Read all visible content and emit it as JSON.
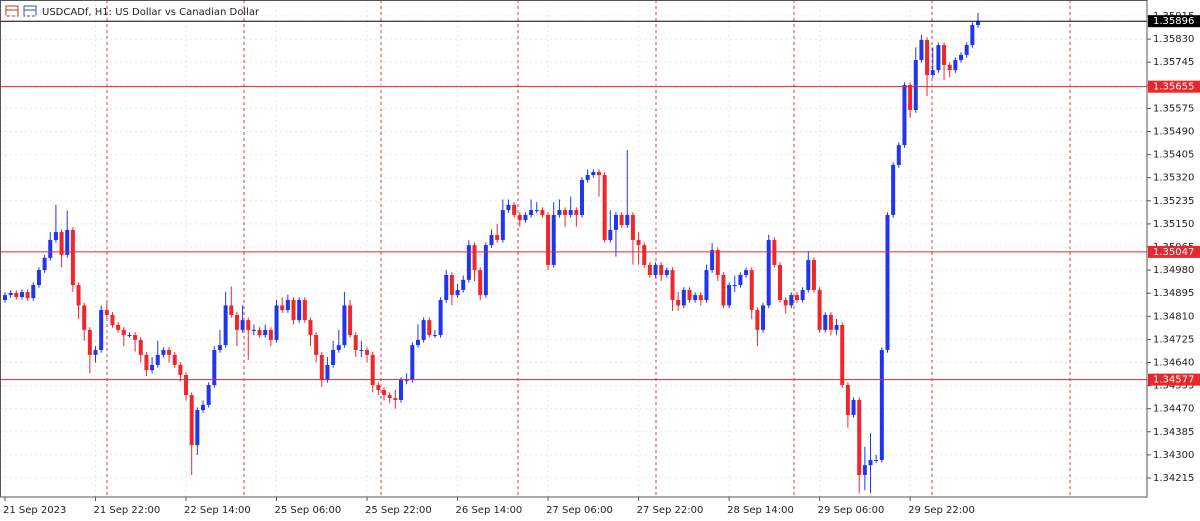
{
  "chart_data": {
    "type": "candlestick",
    "title": "USDCADf, H1:  US Dollar vs Canadian Dollar",
    "categories": [
      "21 Sep 2023",
      null,
      null,
      null,
      null,
      null,
      null,
      null,
      null,
      null,
      null,
      null,
      null,
      null,
      null,
      null,
      "21 Sep 22:00",
      null,
      null,
      null,
      null,
      null,
      null,
      null,
      null,
      null,
      null,
      null,
      null,
      null,
      null,
      null,
      "22 Sep 14:00",
      null,
      null,
      null,
      null,
      null,
      null,
      null,
      null,
      null,
      null,
      null,
      null,
      null,
      null,
      null,
      "25 Sep 06:00",
      null,
      null,
      null,
      null,
      null,
      null,
      null,
      null,
      null,
      null,
      null,
      null,
      null,
      null,
      null,
      "25 Sep 22:00",
      null,
      null,
      null,
      null,
      null,
      null,
      null,
      null,
      null,
      null,
      null,
      null,
      null,
      null,
      null,
      "26 Sep 14:00",
      null,
      null,
      null,
      null,
      null,
      null,
      null,
      null,
      null,
      null,
      null,
      null,
      null,
      null,
      null,
      "27 Sep 06:00",
      null,
      null,
      null,
      null,
      null,
      null,
      null,
      null,
      null,
      null,
      null,
      null,
      null,
      null,
      null,
      "27 Sep 22:00",
      null,
      null,
      null,
      null,
      null,
      null,
      null,
      null,
      null,
      null,
      null,
      null,
      null,
      null,
      null,
      "28 Sep 14:00",
      null,
      null,
      null,
      null,
      null,
      null,
      null,
      null,
      null,
      null,
      null,
      null,
      null,
      null,
      null,
      "29 Sep 06:00",
      null,
      null,
      null,
      null,
      null,
      null,
      null,
      null,
      null,
      null,
      null,
      null,
      null,
      null,
      null,
      "29 Sep 22:00",
      null,
      null,
      null,
      null,
      null,
      null,
      null,
      null,
      null,
      null,
      null,
      null
    ],
    "open": [
      1.3487,
      1.34888,
      1.34896,
      1.34881,
      1.34899,
      1.34877,
      1.34925,
      1.3498,
      1.35025,
      1.35091,
      1.3512,
      1.35036,
      1.35128,
      1.34925,
      1.3485,
      1.3476,
      1.34668,
      1.34686,
      1.34833,
      1.34815,
      1.34778,
      1.3476,
      1.34741,
      1.34741,
      1.34723,
      1.34668,
      1.34612,
      1.34631,
      1.34668,
      1.34686,
      1.34668,
      1.34631,
      1.34594,
      1.3452,
      1.34336,
      1.34465,
      1.34484,
      1.34557,
      1.34686,
      1.34704,
      1.3485,
      1.34815,
      1.3476,
      1.34796,
      1.3476,
      1.3476,
      1.34741,
      1.3476,
      1.34723,
      1.3485,
      1.34833,
      1.3487,
      1.34796,
      1.3487,
      1.34796,
      1.34741,
      1.34668,
      1.34576,
      1.34631,
      1.34686,
      1.34704,
      1.3485,
      1.34741,
      1.34686,
      1.34686,
      1.34668,
      1.34557,
      1.34539,
      1.3452,
      1.34509,
      1.34502,
      1.34576,
      1.34576,
      1.34704,
      1.34723,
      1.34796,
      1.34741,
      1.34741,
      1.3487,
      1.34962,
      1.34888,
      1.34907,
      1.34944,
      1.35072,
      1.3498,
      1.34888,
      1.35072,
      1.35109,
      1.35091,
      1.35201,
      1.3522,
      1.35183,
      1.35164,
      1.35183,
      1.35201,
      1.35201,
      1.35183,
      1.34999,
      1.35183,
      1.35201,
      1.35183,
      1.35201,
      1.35183,
      1.35312,
      1.3533,
      1.35341,
      1.3533,
      1.35091,
      1.35128,
      1.35183,
      1.35146,
      1.35183,
      1.35091,
      1.35072,
      1.34999,
      1.34962,
      1.34999,
      1.34962,
      1.3498,
      1.3487,
      1.3485,
      1.34907,
      1.3487,
      1.34888,
      1.3487,
      1.3498,
      1.35054,
      1.34962,
      1.3485,
      1.34925,
      1.34925,
      1.34962,
      1.3498,
      1.34833,
      1.3476,
      1.3485,
      1.35091,
      1.34999,
      1.3487,
      1.3485,
      1.34888,
      1.3487,
      1.34907,
      1.35017,
      1.34907,
      1.3476,
      1.34815,
      1.3476,
      1.34778,
      1.34557,
      1.34447,
      1.34502,
      1.34226,
      1.34262,
      1.34281,
      1.34281,
      1.34686,
      1.35183,
      1.35367,
      1.3544,
      1.35661,
      1.35569,
      1.35753,
      1.35827,
      1.35698,
      1.35716,
      1.35808,
      1.35735,
      1.35716,
      1.35753,
      1.35772,
      1.35808,
      1.35882
    ],
    "high": [
      1.34898,
      1.34906,
      1.34906,
      1.34909,
      1.34909,
      1.34935,
      1.3499,
      1.35035,
      1.3512,
      1.3522,
      1.3513,
      1.352,
      1.35138,
      1.34935,
      1.3486,
      1.3477,
      1.347,
      1.3485,
      1.3486,
      1.34825,
      1.34788,
      1.3477,
      1.34751,
      1.34751,
      1.34733,
      1.34678,
      1.3466,
      1.3472,
      1.34696,
      1.34696,
      1.34678,
      1.34641,
      1.34604,
      1.3453,
      1.34475,
      1.345,
      1.34567,
      1.347,
      1.3476,
      1.349,
      1.3492,
      1.34825,
      1.3485,
      1.34806,
      1.3478,
      1.3477,
      1.3478,
      1.3477,
      1.3487,
      1.3488,
      1.3489,
      1.3488,
      1.3488,
      1.3488,
      1.34806,
      1.34751,
      1.34678,
      1.3466,
      1.3472,
      1.3476,
      1.349,
      1.3487,
      1.34751,
      1.3472,
      1.34696,
      1.34678,
      1.34567,
      1.34549,
      1.3453,
      1.3454,
      1.34586,
      1.346,
      1.34714,
      1.3478,
      1.34806,
      1.34806,
      1.3476,
      1.3488,
      1.3498,
      1.34972,
      1.3493,
      1.3496,
      1.3509,
      1.35082,
      1.3499,
      1.35082,
      1.3513,
      1.3515,
      1.3524,
      1.3524,
      1.3523,
      1.35193,
      1.35193,
      1.3524,
      1.3523,
      1.35211,
      1.35193,
      1.3523,
      1.3524,
      1.35211,
      1.3525,
      1.35211,
      1.35322,
      1.3535,
      1.35351,
      1.35351,
      1.3534,
      1.352,
      1.35193,
      1.35193,
      1.35422,
      1.35193,
      1.3512,
      1.35082,
      1.35009,
      1.35009,
      1.35009,
      1.3499,
      1.3499,
      1.349,
      1.34917,
      1.34917,
      1.34898,
      1.34898,
      1.35,
      1.3508,
      1.35064,
      1.34972,
      1.34935,
      1.3496,
      1.34972,
      1.3499,
      1.3499,
      1.34843,
      1.3486,
      1.3511,
      1.35101,
      1.35009,
      1.3488,
      1.34898,
      1.34898,
      1.34917,
      1.3505,
      1.35027,
      1.34917,
      1.34825,
      1.34825,
      1.348,
      1.34788,
      1.34567,
      1.34512,
      1.34512,
      1.3433,
      1.3438,
      1.343,
      1.34696,
      1.35193,
      1.35377,
      1.3545,
      1.35671,
      1.35671,
      1.358,
      1.35845,
      1.35837,
      1.358,
      1.35818,
      1.35818,
      1.35745,
      1.35763,
      1.35782,
      1.35818,
      1.35892,
      1.35926
    ],
    "low": [
      1.3486,
      1.34878,
      1.34871,
      1.34871,
      1.34867,
      1.34867,
      1.34915,
      1.3497,
      1.35015,
      1.35081,
      1.3499,
      1.35026,
      1.349,
      1.348,
      1.3472,
      1.346,
      1.3464,
      1.34676,
      1.34805,
      1.34768,
      1.3475,
      1.347,
      1.34731,
      1.3468,
      1.3464,
      1.3459,
      1.346,
      1.34621,
      1.34658,
      1.3464,
      1.34621,
      1.3457,
      1.345,
      1.34226,
      1.343,
      1.34455,
      1.34474,
      1.34547,
      1.34676,
      1.34694,
      1.34805,
      1.347,
      1.3475,
      1.3465,
      1.3474,
      1.34731,
      1.34731,
      1.347,
      1.34713,
      1.34823,
      1.34823,
      1.3478,
      1.34786,
      1.34786,
      1.347,
      1.3464,
      1.3455,
      1.34566,
      1.34621,
      1.34676,
      1.34694,
      1.34731,
      1.3466,
      1.3466,
      1.3464,
      1.3453,
      1.3452,
      1.345,
      1.3449,
      1.3447,
      1.34492,
      1.3456,
      1.34566,
      1.34694,
      1.34713,
      1.34731,
      1.34731,
      1.34731,
      1.3486,
      1.3485,
      1.34878,
      1.34897,
      1.34934,
      1.3494,
      1.3487,
      1.34878,
      1.35062,
      1.35081,
      1.35081,
      1.35191,
      1.35173,
      1.3514,
      1.35154,
      1.35173,
      1.3519,
      1.35173,
      1.3498,
      1.34989,
      1.35173,
      1.3514,
      1.35173,
      1.3514,
      1.35173,
      1.35302,
      1.3532,
      1.3525,
      1.35081,
      1.35081,
      1.3503,
      1.35136,
      1.35136,
      1.35,
      1.35,
      1.34989,
      1.34952,
      1.34952,
      1.3494,
      1.34952,
      1.3483,
      1.3483,
      1.3484,
      1.3486,
      1.3486,
      1.3485,
      1.3486,
      1.3497,
      1.3494,
      1.3484,
      1.3484,
      1.349,
      1.34915,
      1.34952,
      1.348,
      1.347,
      1.3475,
      1.3484,
      1.34989,
      1.3486,
      1.3482,
      1.3484,
      1.3486,
      1.3486,
      1.34897,
      1.34897,
      1.3475,
      1.3475,
      1.3474,
      1.3474,
      1.34547,
      1.344,
      1.34437,
      1.3416,
      1.3417,
      1.3416,
      1.34271,
      1.34271,
      1.34676,
      1.35173,
      1.35357,
      1.3543,
      1.3554,
      1.35559,
      1.35743,
      1.3562,
      1.35688,
      1.35706,
      1.3568,
      1.3569,
      1.35706,
      1.35743,
      1.35762,
      1.35798,
      1.35872
    ],
    "close": [
      1.34888,
      1.34896,
      1.34881,
      1.34899,
      1.34877,
      1.34925,
      1.3498,
      1.35025,
      1.35091,
      1.3512,
      1.35036,
      1.35128,
      1.34925,
      1.3485,
      1.3476,
      1.34668,
      1.34686,
      1.34833,
      1.34815,
      1.34778,
      1.3476,
      1.34741,
      1.34741,
      1.34723,
      1.34668,
      1.34612,
      1.34631,
      1.34668,
      1.34686,
      1.34668,
      1.34631,
      1.34594,
      1.3452,
      1.34336,
      1.34465,
      1.34484,
      1.34557,
      1.34686,
      1.34704,
      1.3485,
      1.34815,
      1.3476,
      1.34796,
      1.3476,
      1.3476,
      1.34741,
      1.3476,
      1.34723,
      1.3485,
      1.34833,
      1.3487,
      1.34796,
      1.3487,
      1.34796,
      1.34741,
      1.34668,
      1.34576,
      1.34631,
      1.34686,
      1.34704,
      1.3485,
      1.34741,
      1.34686,
      1.34686,
      1.34668,
      1.34557,
      1.34539,
      1.3452,
      1.34509,
      1.34502,
      1.34576,
      1.34576,
      1.34704,
      1.34723,
      1.34796,
      1.34741,
      1.34741,
      1.3487,
      1.34962,
      1.34888,
      1.34907,
      1.34944,
      1.35072,
      1.3498,
      1.34888,
      1.35072,
      1.35109,
      1.35091,
      1.35201,
      1.3522,
      1.35183,
      1.35164,
      1.35183,
      1.35201,
      1.35201,
      1.35183,
      1.34999,
      1.35183,
      1.35201,
      1.35183,
      1.35201,
      1.35183,
      1.35312,
      1.3533,
      1.35341,
      1.3533,
      1.35091,
      1.35128,
      1.35183,
      1.35146,
      1.35183,
      1.35091,
      1.35072,
      1.34999,
      1.34962,
      1.34999,
      1.34962,
      1.3498,
      1.3487,
      1.3485,
      1.34907,
      1.3487,
      1.34888,
      1.3487,
      1.3498,
      1.35054,
      1.34962,
      1.3485,
      1.34925,
      1.34925,
      1.34962,
      1.3498,
      1.34833,
      1.3476,
      1.3485,
      1.35091,
      1.34999,
      1.3487,
      1.3485,
      1.34888,
      1.3487,
      1.34907,
      1.35017,
      1.34907,
      1.3476,
      1.34815,
      1.3476,
      1.34778,
      1.34557,
      1.34447,
      1.34502,
      1.34226,
      1.34262,
      1.34281,
      1.34281,
      1.34686,
      1.35183,
      1.35367,
      1.3544,
      1.35661,
      1.35569,
      1.35753,
      1.35827,
      1.35698,
      1.35716,
      1.35808,
      1.35735,
      1.35716,
      1.35753,
      1.35772,
      1.35808,
      1.35882,
      1.35896
    ],
    "up_color": "#1f35f0",
    "down_color": "#f0262c",
    "ylim": [
      1.34145,
      1.35974
    ],
    "yticks": [
      {
        "value": 1.35915,
        "label": "1.35915"
      },
      {
        "value": 1.3583,
        "label": "1.35830"
      },
      {
        "value": 1.35745,
        "label": "1.35745"
      },
      {
        "value": 1.3566,
        "label": "1.35660"
      },
      {
        "value": 1.35575,
        "label": "1.35575"
      },
      {
        "value": 1.3549,
        "label": "1.35490"
      },
      {
        "value": 1.35405,
        "label": "1.35405"
      },
      {
        "value": 1.3532,
        "label": "1.35320"
      },
      {
        "value": 1.35235,
        "label": "1.35235"
      },
      {
        "value": 1.3515,
        "label": "1.35150"
      },
      {
        "value": 1.35065,
        "label": "1.35065"
      },
      {
        "value": 1.3498,
        "label": "1.34980"
      },
      {
        "value": 1.34895,
        "label": "1.34895"
      },
      {
        "value": 1.3481,
        "label": "1.34810"
      },
      {
        "value": 1.34725,
        "label": "1.34725"
      },
      {
        "value": 1.3464,
        "label": "1.34640"
      },
      {
        "value": 1.34555,
        "label": "1.34555"
      },
      {
        "value": 1.3447,
        "label": "1.34470"
      },
      {
        "value": 1.34385,
        "label": "1.34385"
      },
      {
        "value": 1.343,
        "label": "1.34300"
      },
      {
        "value": 1.34215,
        "label": "1.34215"
      }
    ],
    "grid": true,
    "price_lines": [
      {
        "value": 1.35896,
        "color": "#000000"
      },
      {
        "value": 1.35655,
        "color": "#e8262c"
      },
      {
        "value": 1.35047,
        "color": "#e8262c"
      },
      {
        "value": 1.34577,
        "color": "#e8262c"
      }
    ]
  }
}
